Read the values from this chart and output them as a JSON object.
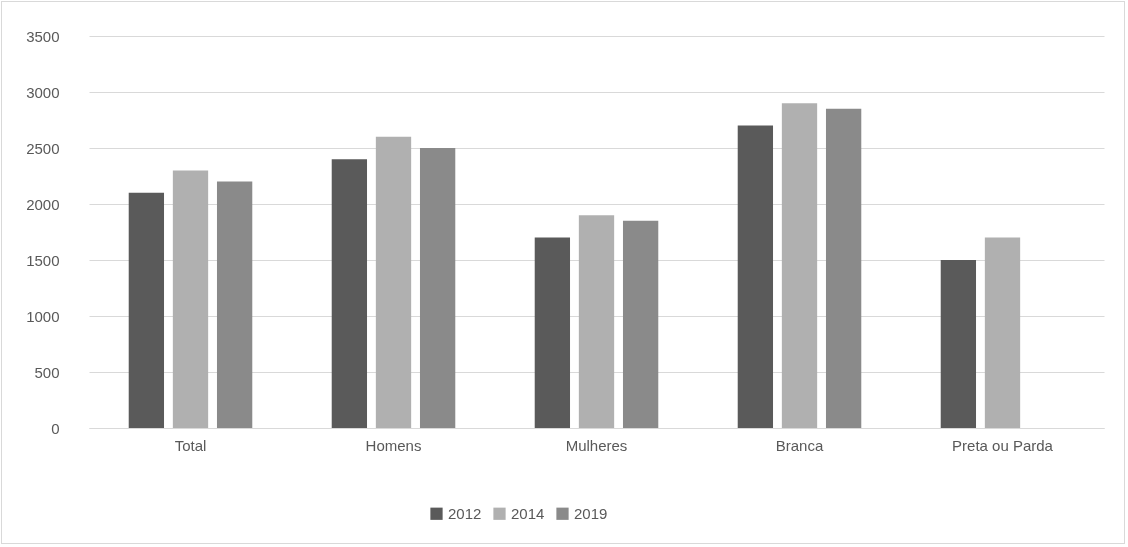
{
  "chart_data": {
    "type": "bar",
    "categories": [
      "Total",
      "Homens",
      "Mulheres",
      "Branca",
      "Preta ou Parda"
    ],
    "series": [
      {
        "name": "2012",
        "color": "#5a5a5a",
        "values": [
          2100,
          2400,
          1700,
          2700,
          1500
        ]
      },
      {
        "name": "2014",
        "color": "#b0b0b0",
        "values": [
          2300,
          2600,
          1900,
          2900,
          1700
        ]
      },
      {
        "name": "2019",
        "color": "#8a8a8a",
        "values": [
          2200,
          2500,
          1850,
          2850,
          null
        ]
      }
    ],
    "ylim": [
      0,
      3500
    ],
    "yticks": [
      0,
      500,
      1000,
      1500,
      2000,
      2500,
      3000,
      3500
    ],
    "grid": "y",
    "legend": "bottom"
  }
}
